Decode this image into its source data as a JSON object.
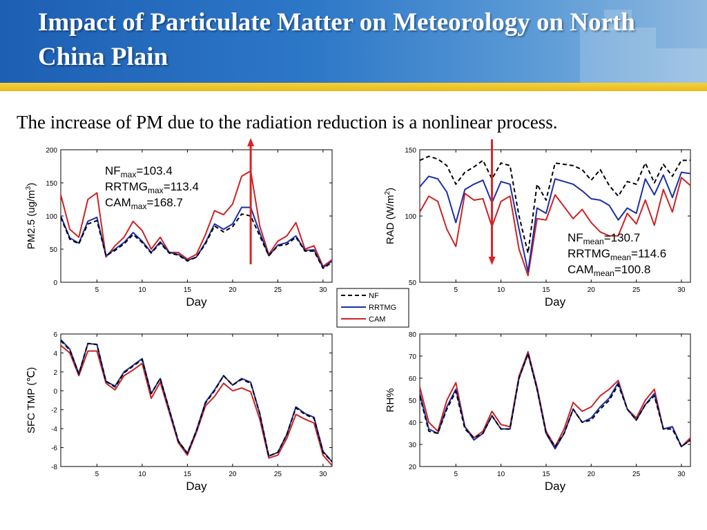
{
  "header": {
    "title": "Impact of Particulate Matter on Meteorology on North China Plain",
    "subtitle": "The increase of PM due to the radiation reduction is a nonlinear process."
  },
  "legend": [
    "NF",
    "RRTMG",
    "CAM"
  ],
  "colors": {
    "NF": "#000000",
    "RRTMG": "#1a2ea8",
    "CAM": "#cc2222",
    "arrow": "#dd2222"
  },
  "chart_data": [
    {
      "type": "line",
      "xlabel": "Day",
      "ylabel": "PM2.5 (ug/m³)",
      "xlim": [
        1,
        31
      ],
      "ylim": [
        0,
        200
      ],
      "xticks": [
        5,
        10,
        15,
        20,
        25,
        30
      ],
      "yticks": [
        0,
        50,
        100,
        150,
        200
      ],
      "x": [
        1,
        2,
        3,
        4,
        5,
        6,
        7,
        8,
        9,
        10,
        11,
        12,
        13,
        14,
        15,
        16,
        17,
        18,
        19,
        20,
        21,
        22,
        23,
        24,
        25,
        26,
        27,
        28,
        29,
        30,
        31
      ],
      "series": [
        {
          "name": "NF",
          "values": [
            98,
            65,
            58,
            88,
            93,
            40,
            48,
            58,
            72,
            60,
            44,
            59,
            44,
            41,
            32,
            38,
            58,
            85,
            76,
            84,
            103,
            100,
            70,
            40,
            55,
            57,
            68,
            47,
            47,
            21,
            30
          ]
        },
        {
          "name": "RRTMG",
          "values": [
            100,
            67,
            59,
            92,
            98,
            40,
            50,
            60,
            75,
            62,
            45,
            61,
            45,
            42,
            33,
            38,
            60,
            88,
            80,
            88,
            113,
            113,
            75,
            40,
            56,
            60,
            70,
            48,
            49,
            22,
            32
          ]
        },
        {
          "name": "CAM",
          "values": [
            132,
            80,
            68,
            125,
            135,
            38,
            55,
            68,
            92,
            78,
            50,
            68,
            45,
            45,
            35,
            42,
            72,
            108,
            102,
            118,
            160,
            168,
            85,
            42,
            62,
            70,
            90,
            50,
            55,
            24,
            34
          ]
        }
      ],
      "annotations": [
        {
          "base": "NF",
          "sub": "max",
          "value": "=103.4"
        },
        {
          "base": "RRTMG",
          "sub": "max",
          "value": "=113.4"
        },
        {
          "base": "CAM",
          "sub": "max",
          "value": "=168.7"
        }
      ],
      "arrow": {
        "x": 22,
        "direction": "up"
      }
    },
    {
      "type": "line",
      "xlabel": "Day",
      "ylabel": "RAD (W/m²)",
      "xlim": [
        1,
        31
      ],
      "ylim": [
        50,
        150
      ],
      "xticks": [
        5,
        10,
        15,
        20,
        25,
        30
      ],
      "yticks": [
        50,
        100,
        150
      ],
      "x": [
        1,
        2,
        3,
        4,
        5,
        6,
        7,
        8,
        9,
        10,
        11,
        12,
        13,
        14,
        15,
        16,
        17,
        18,
        19,
        20,
        21,
        22,
        23,
        24,
        25,
        26,
        27,
        28,
        29,
        30,
        31
      ],
      "series": [
        {
          "name": "NF",
          "values": [
            142,
            145,
            143,
            138,
            124,
            133,
            137,
            142,
            128,
            140,
            138,
            100,
            72,
            124,
            112,
            140,
            139,
            138,
            135,
            127,
            135,
            123,
            115,
            126,
            124,
            140,
            125,
            139,
            130,
            142,
            142
          ]
        },
        {
          "name": "RRTMG",
          "values": [
            122,
            130,
            128,
            118,
            95,
            120,
            124,
            127,
            110,
            126,
            124,
            90,
            58,
            106,
            102,
            128,
            126,
            124,
            119,
            113,
            112,
            108,
            97,
            106,
            102,
            128,
            116,
            131,
            114,
            133,
            132
          ]
        },
        {
          "name": "CAM",
          "values": [
            103,
            115,
            111,
            90,
            77,
            117,
            112,
            113,
            92,
            111,
            115,
            75,
            55,
            98,
            97,
            116,
            107,
            98,
            105,
            95,
            88,
            85,
            85,
            102,
            94,
            112,
            93,
            120,
            103,
            129,
            123
          ]
        }
      ],
      "annotations": [
        {
          "base": "NF",
          "sub": "mean",
          "value": "=130.7"
        },
        {
          "base": "RRTMG",
          "sub": "mean",
          "value": "=114.6"
        },
        {
          "base": "CAM",
          "sub": "mean",
          "value": "=100.8"
        }
      ],
      "arrow": {
        "x": 9,
        "direction": "down"
      }
    },
    {
      "type": "line",
      "xlabel": "Day",
      "ylabel": "SFC TMP (℃)",
      "xlim": [
        1,
        31
      ],
      "ylim": [
        -8,
        6
      ],
      "xticks": [
        5,
        10,
        15,
        20,
        25,
        30
      ],
      "yticks": [
        -8,
        -6,
        -4,
        -2,
        0,
        2,
        4,
        6
      ],
      "x": [
        1,
        2,
        3,
        4,
        5,
        6,
        7,
        8,
        9,
        10,
        11,
        12,
        13,
        14,
        15,
        16,
        17,
        18,
        19,
        20,
        21,
        22,
        23,
        24,
        25,
        26,
        27,
        28,
        29,
        30,
        31
      ],
      "series": [
        {
          "name": "NF",
          "values": [
            5.3,
            4.3,
            1.8,
            5.0,
            4.9,
            1.0,
            0.4,
            1.9,
            2.6,
            3.3,
            -0.3,
            1.3,
            -2.0,
            -5.3,
            -6.6,
            -4.2,
            -1.3,
            0.0,
            1.6,
            0.6,
            1.2,
            0.8,
            -2.4,
            -6.9,
            -6.5,
            -4.6,
            -1.8,
            -2.5,
            -2.9,
            -6.5,
            -7.5
          ]
        },
        {
          "name": "RRTMG",
          "values": [
            5.4,
            4.4,
            1.8,
            5.0,
            4.9,
            1.0,
            0.5,
            2.0,
            2.7,
            3.4,
            -0.3,
            1.3,
            -2.0,
            -5.3,
            -6.6,
            -4.2,
            -1.2,
            0.1,
            1.6,
            0.6,
            1.3,
            0.9,
            -2.4,
            -6.9,
            -6.5,
            -4.6,
            -1.7,
            -2.4,
            -2.8,
            -6.4,
            -7.5
          ]
        },
        {
          "name": "CAM",
          "values": [
            4.8,
            4.0,
            1.6,
            4.2,
            4.2,
            0.8,
            0.1,
            1.6,
            2.2,
            2.9,
            -0.8,
            0.9,
            -2.3,
            -5.5,
            -6.8,
            -4.4,
            -1.6,
            -0.6,
            0.8,
            0.0,
            0.3,
            -0.1,
            -3.0,
            -7.1,
            -6.8,
            -5.0,
            -2.5,
            -3.0,
            -3.4,
            -6.8,
            -7.9
          ]
        }
      ]
    },
    {
      "type": "line",
      "xlabel": "Day",
      "ylabel": "RH%",
      "xlim": [
        1,
        31
      ],
      "ylim": [
        20,
        80
      ],
      "xticks": [
        5,
        10,
        15,
        20,
        25,
        30
      ],
      "yticks": [
        20,
        30,
        40,
        50,
        60,
        70,
        80
      ],
      "x": [
        1,
        2,
        3,
        4,
        5,
        6,
        7,
        8,
        9,
        10,
        11,
        12,
        13,
        14,
        15,
        16,
        17,
        18,
        19,
        20,
        21,
        22,
        23,
        24,
        25,
        26,
        27,
        28,
        29,
        30,
        31
      ],
      "series": [
        {
          "name": "NF",
          "values": [
            52,
            36,
            35,
            46,
            54,
            37,
            33,
            35,
            43,
            37,
            37,
            60,
            71,
            55,
            35,
            29,
            35,
            46,
            40,
            41,
            46,
            50,
            57,
            46,
            41,
            48,
            52,
            37,
            37,
            29,
            32
          ]
        },
        {
          "name": "RRTMG",
          "values": [
            53,
            37,
            35,
            47,
            55,
            38,
            32,
            35,
            43,
            37,
            37,
            60,
            71,
            55,
            35,
            28,
            35,
            46,
            40,
            42,
            47,
            51,
            58,
            46,
            41,
            48,
            53,
            37,
            38,
            29,
            32
          ]
        },
        {
          "name": "CAM",
          "values": [
            56,
            40,
            36,
            50,
            58,
            38,
            33,
            36,
            45,
            39,
            38,
            61,
            72,
            56,
            36,
            29,
            37,
            49,
            45,
            47,
            52,
            55,
            59,
            46,
            42,
            50,
            55,
            37,
            38,
            29,
            33
          ]
        }
      ]
    }
  ]
}
